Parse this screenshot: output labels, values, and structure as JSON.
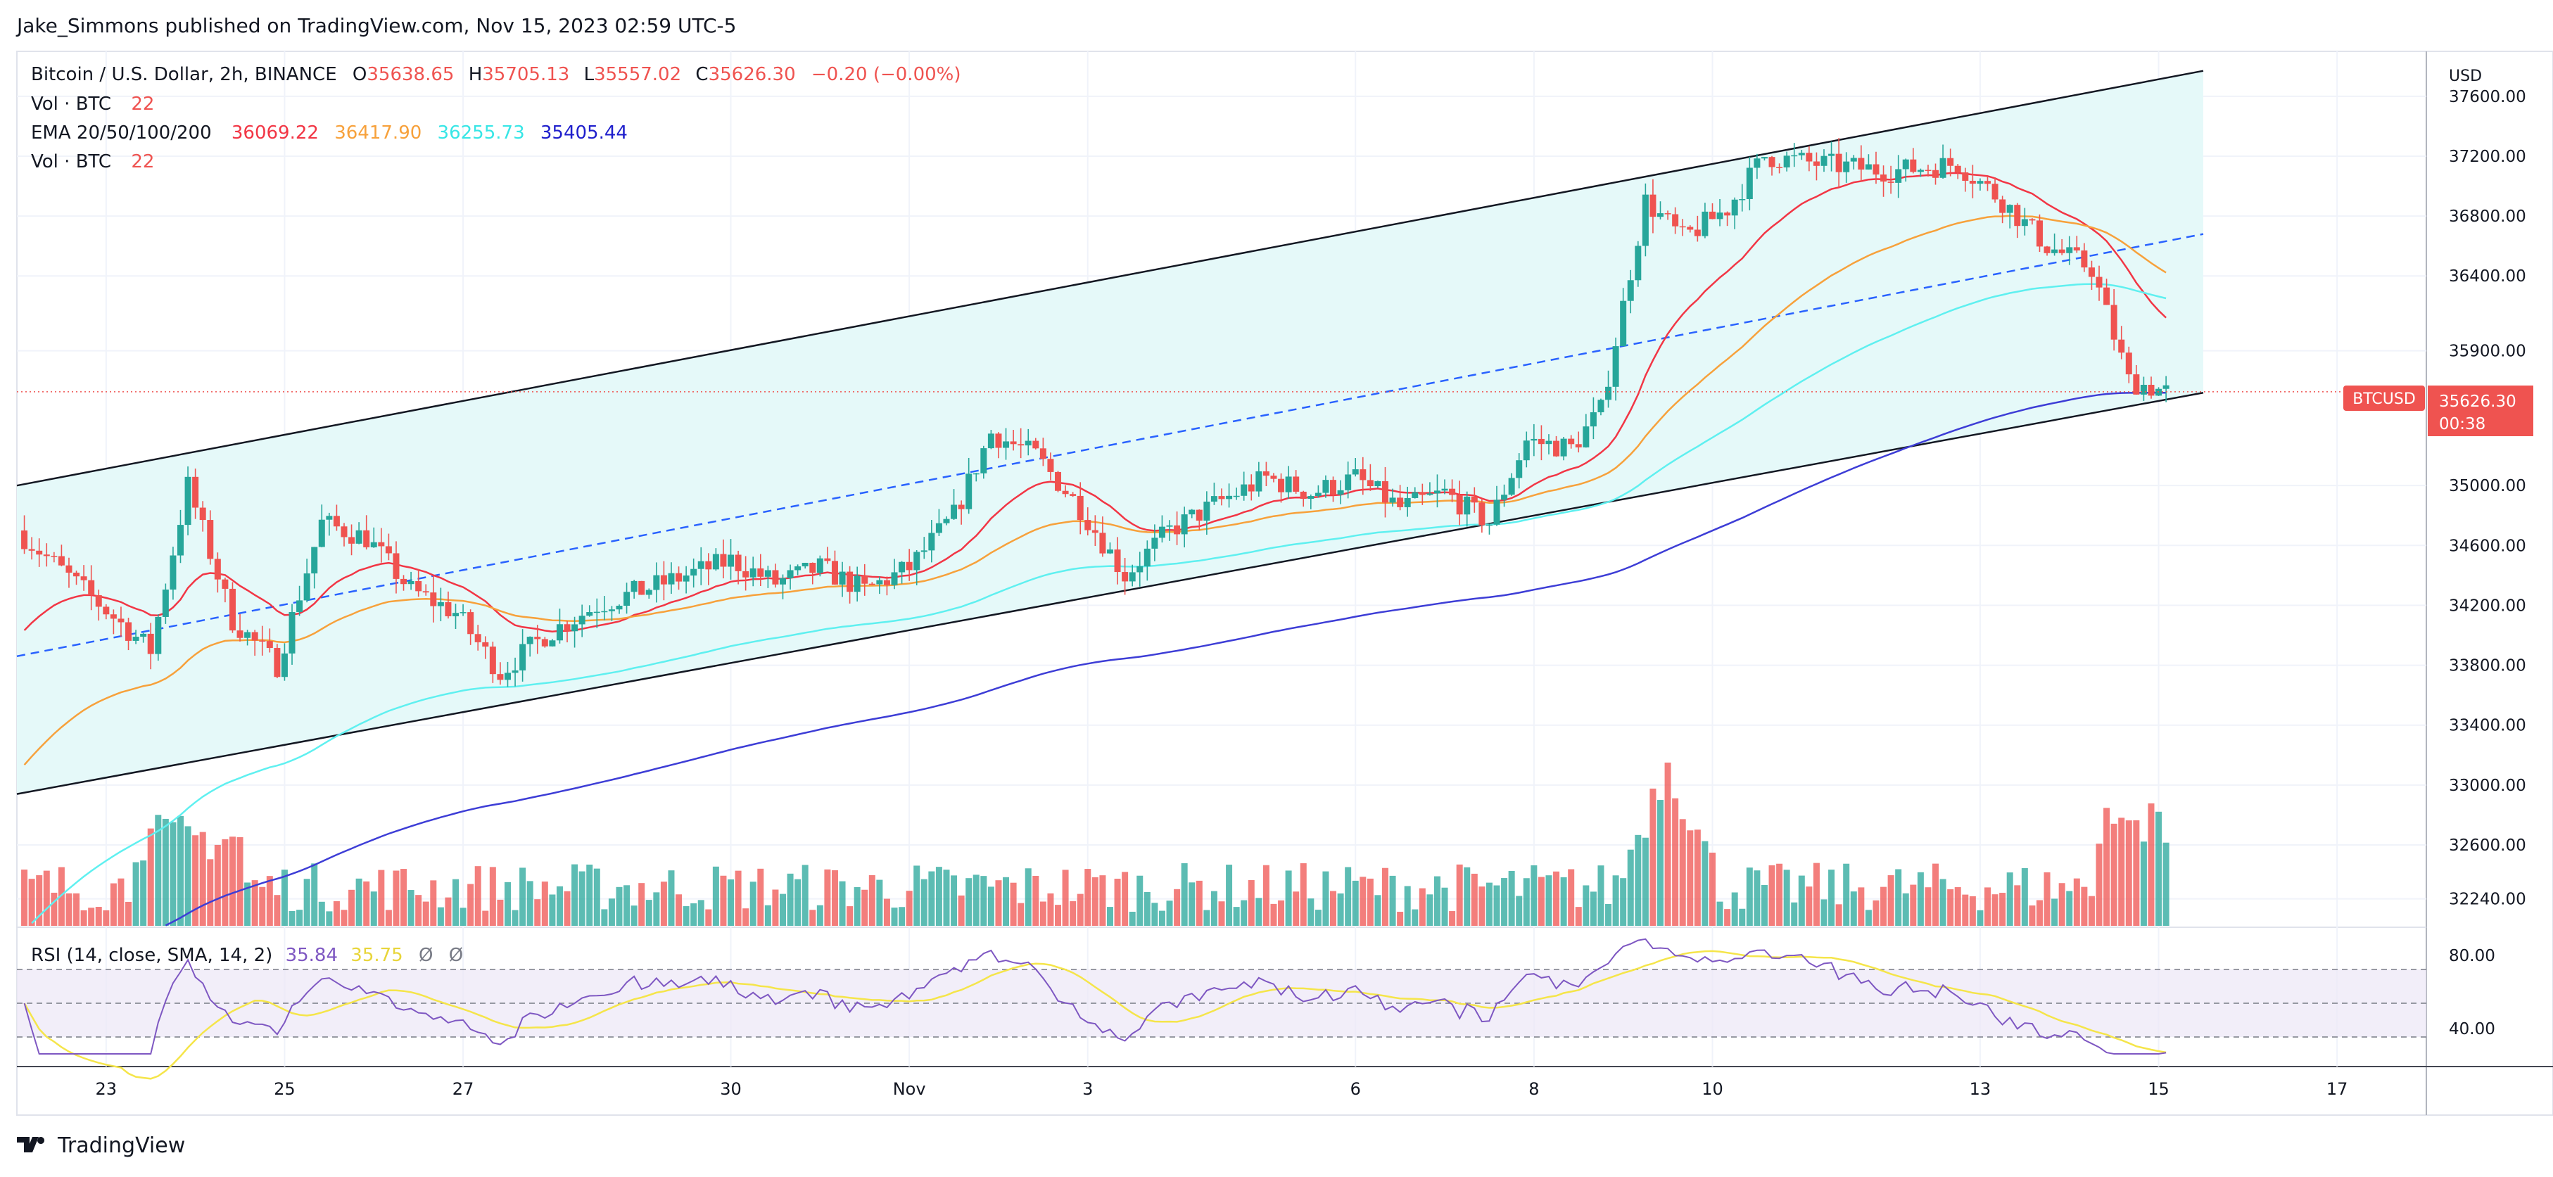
{
  "header": {
    "publisher": "Jake_Simmons published on TradingView.com, Nov 15, 2023 02:59 UTC-5"
  },
  "legend": {
    "symbol": "Bitcoin / U.S. Dollar, 2h, BINANCE",
    "o_label": "O",
    "o": "35638.65",
    "h_label": "H",
    "h": "35705.13",
    "l_label": "L",
    "l": "35557.02",
    "c_label": "C",
    "c": "35626.30",
    "change": "−0.20 (−0.00%)",
    "vol1_label": "Vol · BTC",
    "vol1_value": "22",
    "ema_label": "EMA 20/50/100/200",
    "ema20": "36069.22",
    "ema50": "36417.90",
    "ema100": "36255.73",
    "ema200": "35405.44",
    "vol2_label": "Vol · BTC",
    "vol2_value": "22"
  },
  "rsi_legend": {
    "label": "RSI (14, close, SMA, 14, 2)",
    "rsi": "35.84",
    "sma": "35.75",
    "icon1": "Ø",
    "icon2": "Ø"
  },
  "price_scale": {
    "currency": "USD",
    "ticks": [
      "37600.00",
      "37200.00",
      "36800.00",
      "36400.00",
      "35900.00",
      "35000.00",
      "34600.00",
      "34200.00",
      "33800.00",
      "33400.00",
      "33000.00",
      "32600.00",
      "32240.00"
    ],
    "last_label": "BTCUSD",
    "last_price": "35626.30",
    "countdown": "00:38"
  },
  "rsi_scale": {
    "ticks": [
      "80.00",
      "40.00"
    ]
  },
  "time_axis": {
    "ticks": [
      "23",
      "25",
      "27",
      "30",
      "Nov",
      "3",
      "6",
      "8",
      "10",
      "13",
      "15",
      "17"
    ]
  },
  "footer": {
    "brand": "TradingView"
  },
  "colors": {
    "up": "#26a69a",
    "down": "#ef5350",
    "ema20": "#f23645",
    "ema50": "#f7a13b",
    "ema100": "#5ff0f0",
    "ema200": "#3d3dd6",
    "channel_fill": "#e5f9f9",
    "midline": "#2962ff",
    "rsi": "#7e57c2",
    "rsi_sma": "#f5e54a"
  },
  "chart_data": {
    "type": "candlestick",
    "symbol": "BTCUSD",
    "timeframe": "2h",
    "x_range": [
      "2023-10-22",
      "2023-11-18"
    ],
    "y_range": [
      32050,
      37900
    ],
    "price_points": [
      [
        "2023-10-22T00:00",
        34700
      ],
      [
        "2023-10-23T12:00",
        33900
      ],
      [
        "2023-10-23T22:00",
        35000
      ],
      [
        "2023-10-24T10:00",
        34100
      ],
      [
        "2023-10-24T22:00",
        33800
      ],
      [
        "2023-10-25T10:00",
        34750
      ],
      [
        "2023-10-25T22:00",
        34650
      ],
      [
        "2023-10-26T10:00",
        34300
      ],
      [
        "2023-10-26T22:00",
        34150
      ],
      [
        "2023-10-27T10:00",
        33750
      ],
      [
        "2023-10-27T22:00",
        34000
      ],
      [
        "2023-10-28T12:00",
        34200
      ],
      [
        "2023-10-29T12:00",
        34400
      ],
      [
        "2023-10-30T00:00",
        34500
      ],
      [
        "2023-10-30T12:00",
        34350
      ],
      [
        "2023-10-31T00:00",
        34450
      ],
      [
        "2023-10-31T12:00",
        34300
      ],
      [
        "2023-11-01T00:00",
        34450
      ],
      [
        "2023-11-01T12:00",
        34800
      ],
      [
        "2023-11-01T22:00",
        35350
      ],
      [
        "2023-11-02T10:00",
        35200
      ],
      [
        "2023-11-02T22:00",
        34850
      ],
      [
        "2023-11-03T10:00",
        34400
      ],
      [
        "2023-11-03T22:00",
        34700
      ],
      [
        "2023-11-04T12:00",
        34900
      ],
      [
        "2023-11-05T00:00",
        35050
      ],
      [
        "2023-11-05T12:00",
        34950
      ],
      [
        "2023-11-06T00:00",
        35050
      ],
      [
        "2023-11-06T12:00",
        34850
      ],
      [
        "2023-11-07T00:00",
        34950
      ],
      [
        "2023-11-07T12:00",
        34750
      ],
      [
        "2023-11-07T22:00",
        35300
      ],
      [
        "2023-11-08T10:00",
        35250
      ],
      [
        "2023-11-08T18:00",
        35500
      ],
      [
        "2023-11-09T06:00",
        36900
      ],
      [
        "2023-11-09T16:00",
        36650
      ],
      [
        "2023-11-10T04:00",
        36850
      ],
      [
        "2023-11-10T14:00",
        37200
      ],
      [
        "2023-11-11T04:00",
        37150
      ],
      [
        "2023-11-12T00:00",
        37100
      ],
      [
        "2023-11-12T18:00",
        37150
      ],
      [
        "2023-11-13T06:00",
        36900
      ],
      [
        "2023-11-13T18:00",
        36600
      ],
      [
        "2023-11-14T06:00",
        36450
      ],
      [
        "2023-11-14T16:00",
        35700
      ],
      [
        "2023-11-15T02:00",
        35626.3
      ]
    ],
    "volume_peak_btc_relative": "max on 2023-11-09",
    "indicators": {
      "ema20": 36069.22,
      "ema50": 36417.9,
      "ema100": 36255.73,
      "ema200": 35405.44,
      "rsi14": 35.84,
      "rsi_sma14": 35.75
    },
    "annotations": {
      "ascending_channel": {
        "upper": [
          [
            "2023-10-22",
            35000
          ],
          [
            "2023-11-15T12:00",
            37770
          ]
        ],
        "lower": [
          [
            "2023-10-22",
            32940
          ],
          [
            "2023-11-15T12:00",
            35620
          ]
        ],
        "mid_dashed": [
          [
            "2023-10-22",
            33860
          ],
          [
            "2023-11-15T12:00",
            36680
          ]
        ]
      }
    },
    "rsi_levels": [
      70,
      50,
      30
    ]
  }
}
